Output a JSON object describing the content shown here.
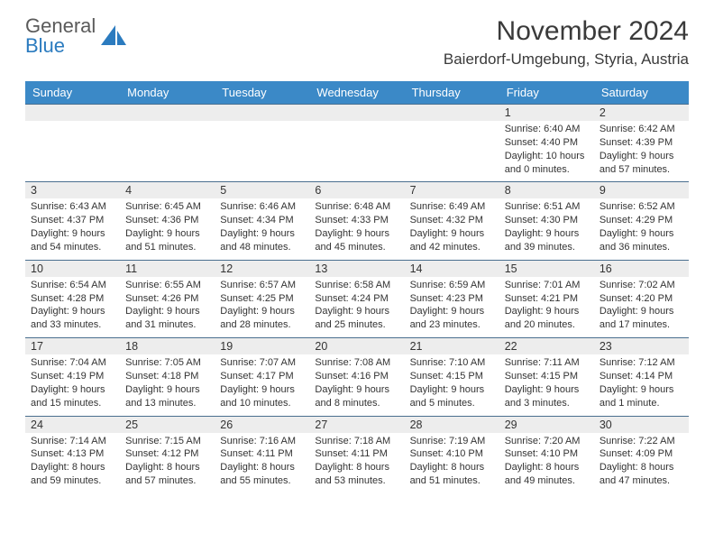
{
  "logo": {
    "text1": "General",
    "text2": "Blue",
    "shape_color": "#2b7bbf"
  },
  "title": "November 2024",
  "location": "Baierdorf-Umgebung, Styria, Austria",
  "header_bg": "#3b89c7",
  "header_fg": "#ffffff",
  "daynum_bg": "#ededed",
  "daynum_border": "#4a6f8f",
  "day_names": [
    "Sunday",
    "Monday",
    "Tuesday",
    "Wednesday",
    "Thursday",
    "Friday",
    "Saturday"
  ],
  "weeks": [
    [
      null,
      null,
      null,
      null,
      null,
      {
        "n": "1",
        "sr": "Sunrise: 6:40 AM",
        "ss": "Sunset: 4:40 PM",
        "dl": "Daylight: 10 hours and 0 minutes."
      },
      {
        "n": "2",
        "sr": "Sunrise: 6:42 AM",
        "ss": "Sunset: 4:39 PM",
        "dl": "Daylight: 9 hours and 57 minutes."
      }
    ],
    [
      {
        "n": "3",
        "sr": "Sunrise: 6:43 AM",
        "ss": "Sunset: 4:37 PM",
        "dl": "Daylight: 9 hours and 54 minutes."
      },
      {
        "n": "4",
        "sr": "Sunrise: 6:45 AM",
        "ss": "Sunset: 4:36 PM",
        "dl": "Daylight: 9 hours and 51 minutes."
      },
      {
        "n": "5",
        "sr": "Sunrise: 6:46 AM",
        "ss": "Sunset: 4:34 PM",
        "dl": "Daylight: 9 hours and 48 minutes."
      },
      {
        "n": "6",
        "sr": "Sunrise: 6:48 AM",
        "ss": "Sunset: 4:33 PM",
        "dl": "Daylight: 9 hours and 45 minutes."
      },
      {
        "n": "7",
        "sr": "Sunrise: 6:49 AM",
        "ss": "Sunset: 4:32 PM",
        "dl": "Daylight: 9 hours and 42 minutes."
      },
      {
        "n": "8",
        "sr": "Sunrise: 6:51 AM",
        "ss": "Sunset: 4:30 PM",
        "dl": "Daylight: 9 hours and 39 minutes."
      },
      {
        "n": "9",
        "sr": "Sunrise: 6:52 AM",
        "ss": "Sunset: 4:29 PM",
        "dl": "Daylight: 9 hours and 36 minutes."
      }
    ],
    [
      {
        "n": "10",
        "sr": "Sunrise: 6:54 AM",
        "ss": "Sunset: 4:28 PM",
        "dl": "Daylight: 9 hours and 33 minutes."
      },
      {
        "n": "11",
        "sr": "Sunrise: 6:55 AM",
        "ss": "Sunset: 4:26 PM",
        "dl": "Daylight: 9 hours and 31 minutes."
      },
      {
        "n": "12",
        "sr": "Sunrise: 6:57 AM",
        "ss": "Sunset: 4:25 PM",
        "dl": "Daylight: 9 hours and 28 minutes."
      },
      {
        "n": "13",
        "sr": "Sunrise: 6:58 AM",
        "ss": "Sunset: 4:24 PM",
        "dl": "Daylight: 9 hours and 25 minutes."
      },
      {
        "n": "14",
        "sr": "Sunrise: 6:59 AM",
        "ss": "Sunset: 4:23 PM",
        "dl": "Daylight: 9 hours and 23 minutes."
      },
      {
        "n": "15",
        "sr": "Sunrise: 7:01 AM",
        "ss": "Sunset: 4:21 PM",
        "dl": "Daylight: 9 hours and 20 minutes."
      },
      {
        "n": "16",
        "sr": "Sunrise: 7:02 AM",
        "ss": "Sunset: 4:20 PM",
        "dl": "Daylight: 9 hours and 17 minutes."
      }
    ],
    [
      {
        "n": "17",
        "sr": "Sunrise: 7:04 AM",
        "ss": "Sunset: 4:19 PM",
        "dl": "Daylight: 9 hours and 15 minutes."
      },
      {
        "n": "18",
        "sr": "Sunrise: 7:05 AM",
        "ss": "Sunset: 4:18 PM",
        "dl": "Daylight: 9 hours and 13 minutes."
      },
      {
        "n": "19",
        "sr": "Sunrise: 7:07 AM",
        "ss": "Sunset: 4:17 PM",
        "dl": "Daylight: 9 hours and 10 minutes."
      },
      {
        "n": "20",
        "sr": "Sunrise: 7:08 AM",
        "ss": "Sunset: 4:16 PM",
        "dl": "Daylight: 9 hours and 8 minutes."
      },
      {
        "n": "21",
        "sr": "Sunrise: 7:10 AM",
        "ss": "Sunset: 4:15 PM",
        "dl": "Daylight: 9 hours and 5 minutes."
      },
      {
        "n": "22",
        "sr": "Sunrise: 7:11 AM",
        "ss": "Sunset: 4:15 PM",
        "dl": "Daylight: 9 hours and 3 minutes."
      },
      {
        "n": "23",
        "sr": "Sunrise: 7:12 AM",
        "ss": "Sunset: 4:14 PM",
        "dl": "Daylight: 9 hours and 1 minute."
      }
    ],
    [
      {
        "n": "24",
        "sr": "Sunrise: 7:14 AM",
        "ss": "Sunset: 4:13 PM",
        "dl": "Daylight: 8 hours and 59 minutes."
      },
      {
        "n": "25",
        "sr": "Sunrise: 7:15 AM",
        "ss": "Sunset: 4:12 PM",
        "dl": "Daylight: 8 hours and 57 minutes."
      },
      {
        "n": "26",
        "sr": "Sunrise: 7:16 AM",
        "ss": "Sunset: 4:11 PM",
        "dl": "Daylight: 8 hours and 55 minutes."
      },
      {
        "n": "27",
        "sr": "Sunrise: 7:18 AM",
        "ss": "Sunset: 4:11 PM",
        "dl": "Daylight: 8 hours and 53 minutes."
      },
      {
        "n": "28",
        "sr": "Sunrise: 7:19 AM",
        "ss": "Sunset: 4:10 PM",
        "dl": "Daylight: 8 hours and 51 minutes."
      },
      {
        "n": "29",
        "sr": "Sunrise: 7:20 AM",
        "ss": "Sunset: 4:10 PM",
        "dl": "Daylight: 8 hours and 49 minutes."
      },
      {
        "n": "30",
        "sr": "Sunrise: 7:22 AM",
        "ss": "Sunset: 4:09 PM",
        "dl": "Daylight: 8 hours and 47 minutes."
      }
    ]
  ]
}
